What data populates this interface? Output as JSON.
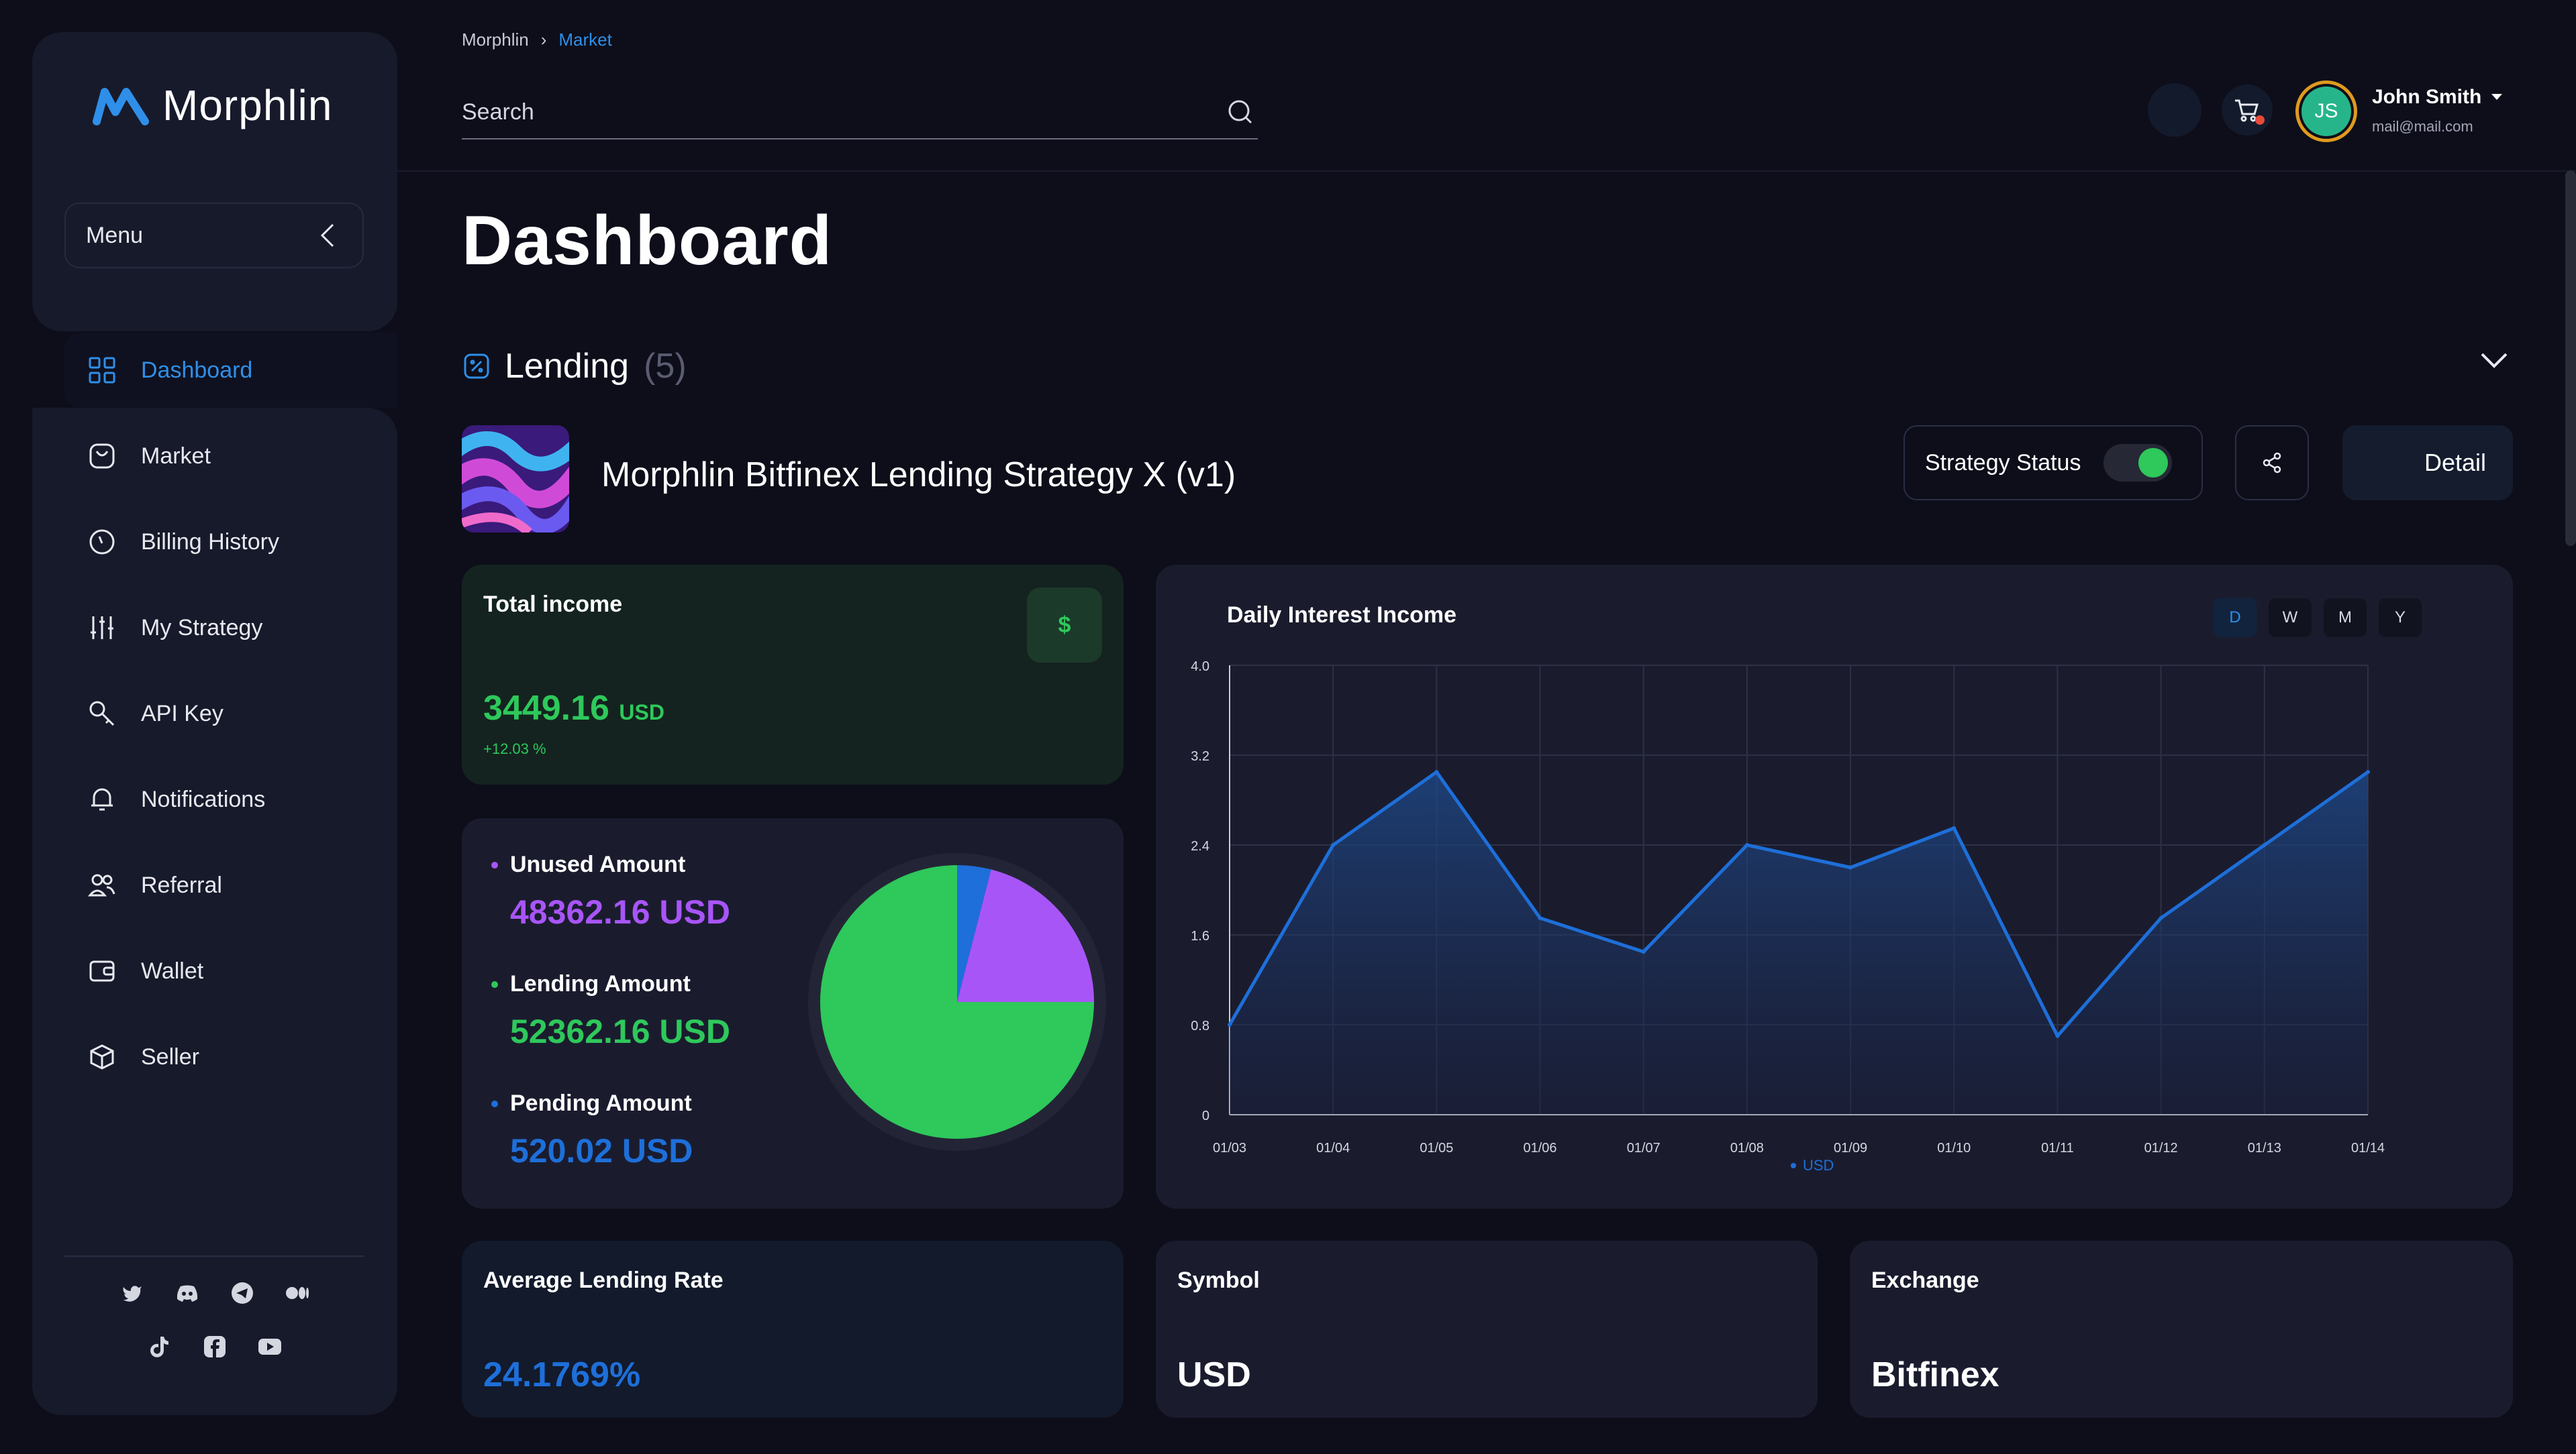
{
  "brand": {
    "name": "Morphlin"
  },
  "sidebar": {
    "menu_label": "Menu",
    "items": [
      {
        "label": "Dashboard",
        "icon": "grid-icon",
        "active": true
      },
      {
        "label": "Market",
        "icon": "bag-icon"
      },
      {
        "label": "Billing History",
        "icon": "clock-icon"
      },
      {
        "label": "My Strategy",
        "icon": "sliders-icon"
      },
      {
        "label": "API Key",
        "icon": "key-icon"
      },
      {
        "label": "Notifications",
        "icon": "bell-icon"
      },
      {
        "label": "Referral",
        "icon": "users-icon"
      },
      {
        "label": "Wallet",
        "icon": "wallet-icon"
      },
      {
        "label": "Seller",
        "icon": "box-icon"
      }
    ],
    "socials": [
      "twitter-icon",
      "discord-icon",
      "telegram-icon",
      "medium-icon",
      "tiktok-icon",
      "facebook-icon",
      "youtube-icon"
    ]
  },
  "header": {
    "breadcrumb": [
      "Morphlin",
      "Market"
    ],
    "search_placeholder": "Search",
    "user": {
      "initials": "JS",
      "name": "John Smith",
      "email": "mail@mail.com"
    }
  },
  "page": {
    "title": "Dashboard",
    "section": {
      "title": "Lending",
      "count": "(5)"
    },
    "strategy": {
      "title": "Morphlin Bitfinex Lending Strategy X (v1)",
      "status_label": "Strategy Status",
      "status_on": true,
      "detail_label": "Detail"
    },
    "total_income": {
      "title": "Total income",
      "value": "3449.16",
      "unit": "USD",
      "change": "+12.03 %",
      "icon": "$"
    },
    "amounts": {
      "unused": {
        "label": "Unused Amount",
        "value": "48362.16 USD"
      },
      "lending": {
        "label": "Lending Amount",
        "value": "52362.16 USD"
      },
      "pending": {
        "label": "Pending Amount",
        "value": "520.02 USD"
      }
    },
    "average_rate": {
      "title": "Average Lending Rate",
      "value": "24.1769%"
    },
    "symbol": {
      "title": "Symbol",
      "value": "USD"
    },
    "exchange": {
      "title": "Exchange",
      "value": "Bitfinex"
    }
  },
  "colors": {
    "accent": "#2f8fe8",
    "green": "#2ec85b",
    "purple": "#a855f7",
    "blue": "#1e6fd9"
  },
  "chart_data": [
    {
      "type": "line",
      "title": "Daily Interest Income",
      "periods": [
        "D",
        "W",
        "M",
        "Y"
      ],
      "active_period": "D",
      "x": [
        "01/03",
        "01/04",
        "01/05",
        "01/06",
        "01/07",
        "01/08",
        "01/09",
        "01/10",
        "01/11",
        "01/12",
        "01/13",
        "01/14"
      ],
      "series": [
        {
          "name": "USD",
          "values": [
            0.8,
            2.4,
            3.05,
            1.75,
            1.45,
            2.4,
            2.2,
            2.55,
            0.7,
            1.75,
            2.4,
            3.05
          ]
        }
      ],
      "yticks": [
        "0",
        "0.8",
        "1.6",
        "2.4",
        "3.2",
        "4.0"
      ],
      "ylim": [
        0,
        4.0
      ],
      "grid": true,
      "legend": "bottom"
    },
    {
      "type": "pie",
      "labels": [
        "Lending Amount",
        "Unused Amount",
        "Pending Amount"
      ],
      "values": [
        75,
        21,
        4
      ]
    }
  ]
}
